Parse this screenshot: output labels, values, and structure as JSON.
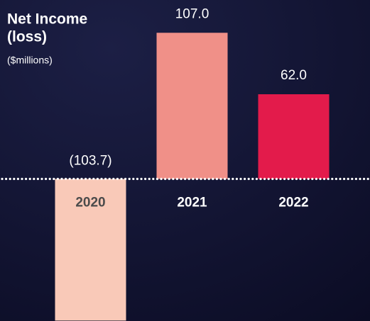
{
  "chart_data": {
    "type": "bar",
    "title": [
      "Net Income",
      "(loss)"
    ],
    "subtitle": "($millions)",
    "categories": [
      "2020",
      "2021",
      "2022"
    ],
    "values": [
      -103.7,
      107.0,
      62.0
    ],
    "value_labels": [
      "(103.7)",
      "107.0",
      "62.0"
    ],
    "colors": [
      "#f9c9b8",
      "#f09088",
      "#e31b4b"
    ],
    "ylim": [
      -104,
      131
    ]
  }
}
